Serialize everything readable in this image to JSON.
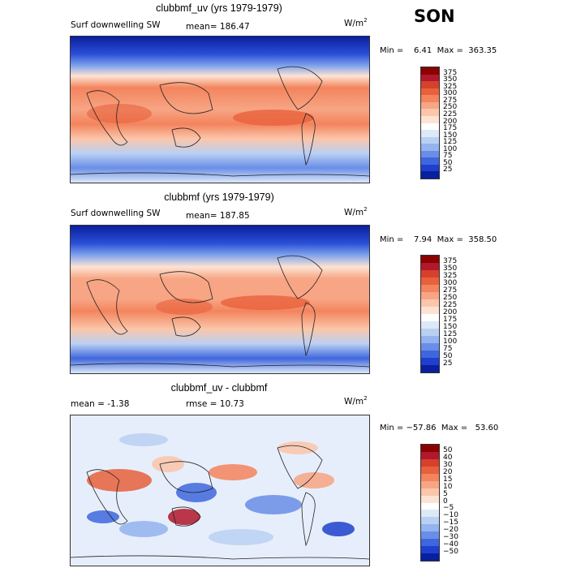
{
  "season": "SON",
  "panels": [
    {
      "title": "clubbmf_uv (yrs 1979-1979)",
      "left_text": "Surf downwelling SW",
      "center_text": "mean=  186.47",
      "units": "W/m",
      "units_sup": "2",
      "minmax": "Min =    6.41  Max =  363.35",
      "colorbar_labels": [
        "375",
        "350",
        "325",
        "300",
        "275",
        "250",
        "225",
        "200",
        "175",
        "150",
        "125",
        "100",
        "75",
        "50",
        "25"
      ],
      "colorbar_colors": [
        "#8b0000",
        "#b2182b",
        "#d6412c",
        "#e8613c",
        "#f3845d",
        "#f7a584",
        "#fbc6aa",
        "#fde3d3",
        "#ffffff",
        "#dce9f7",
        "#bad0f3",
        "#94b3ef",
        "#6a8ee8",
        "#3f67dd",
        "#1f3fce",
        "#0a1f9e"
      ]
    },
    {
      "title": "clubbmf (yrs 1979-1979)",
      "left_text": "Surf downwelling SW",
      "center_text": "mean=  187.85",
      "units": "W/m",
      "units_sup": "2",
      "minmax": "Min =    7.94  Max =  358.50",
      "colorbar_labels": [
        "375",
        "350",
        "325",
        "300",
        "275",
        "250",
        "225",
        "200",
        "175",
        "150",
        "125",
        "100",
        "75",
        "50",
        "25"
      ],
      "colorbar_colors": [
        "#8b0000",
        "#b2182b",
        "#d6412c",
        "#e8613c",
        "#f3845d",
        "#f7a584",
        "#fbc6aa",
        "#fde3d3",
        "#ffffff",
        "#dce9f7",
        "#bad0f3",
        "#94b3ef",
        "#6a8ee8",
        "#3f67dd",
        "#1f3fce",
        "#0a1f9e"
      ]
    },
    {
      "title": "clubbmf_uv - clubbmf",
      "left_text": "mean =   -1.38",
      "center_text": "rmse =   10.73",
      "units": "W/m",
      "units_sup": "2",
      "minmax": "Min = −57.86  Max =   53.60",
      "colorbar_labels": [
        "50",
        "40",
        "30",
        "20",
        "15",
        "10",
        "5",
        "0",
        "−5",
        "−10",
        "−15",
        "−20",
        "−30",
        "−40",
        "−50"
      ],
      "colorbar_colors": [
        "#8b0000",
        "#b2182b",
        "#d6412c",
        "#e8613c",
        "#f3845d",
        "#f7a584",
        "#fbc6aa",
        "#fde3d3",
        "#ffffff",
        "#dce9f7",
        "#bad0f3",
        "#94b3ef",
        "#6a8ee8",
        "#3f67dd",
        "#1f3fce",
        "#0a1f9e"
      ]
    }
  ]
}
